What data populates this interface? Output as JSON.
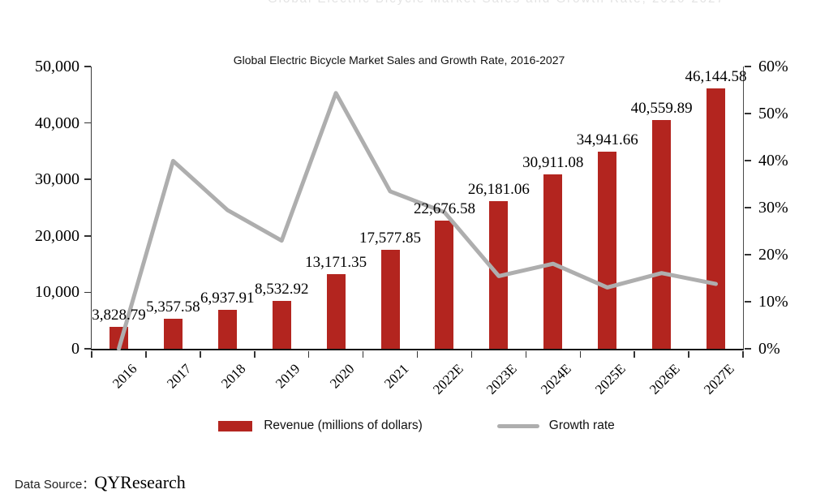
{
  "chart_data": {
    "type": "bar+line",
    "title": "Global Electric Bicycle Market Sales and Growth Rate, 2016-2027",
    "categories": [
      "2016",
      "2017",
      "2018",
      "2019",
      "2020",
      "2021",
      "2022E",
      "2023E",
      "2024E",
      "2025E",
      "2026E",
      "2027E"
    ],
    "series": [
      {
        "name": "Revenue (millions of dollars)",
        "type": "bar",
        "color": "#b3251f",
        "values": [
          3828.79,
          5357.58,
          6937.91,
          8532.92,
          13171.35,
          17577.85,
          22676.58,
          26181.06,
          30911.08,
          34941.66,
          40559.89,
          46144.58
        ],
        "labels": [
          "3,828.79",
          "5,357.58",
          "6,937.91",
          "8,532.92",
          "13,171.35",
          "17,577.85",
          "22,676.58",
          "26,181.06",
          "30,911.08",
          "34,941.66",
          "40,559.89",
          "46,144.58"
        ]
      },
      {
        "name": "Growth rate",
        "type": "line",
        "color": "#aeaeae",
        "values_pct": [
          0,
          39.93,
          29.5,
          22.99,
          54.36,
          33.46,
          29.01,
          15.45,
          18.07,
          13.04,
          16.08,
          13.77
        ]
      }
    ],
    "left_axis": {
      "min": 0,
      "max": 50000,
      "tick_labels": [
        "0",
        "10,000",
        "20,000",
        "30,000",
        "40,000",
        "50,000"
      ]
    },
    "right_axis": {
      "min": 0,
      "max": 60,
      "tick_labels": [
        "0%",
        "10%",
        "20%",
        "30%",
        "40%",
        "50%",
        "60%"
      ]
    },
    "grid": false,
    "legend_position": "bottom-center"
  },
  "footer": {
    "label": "Data Source：",
    "value": "QYResearch"
  }
}
